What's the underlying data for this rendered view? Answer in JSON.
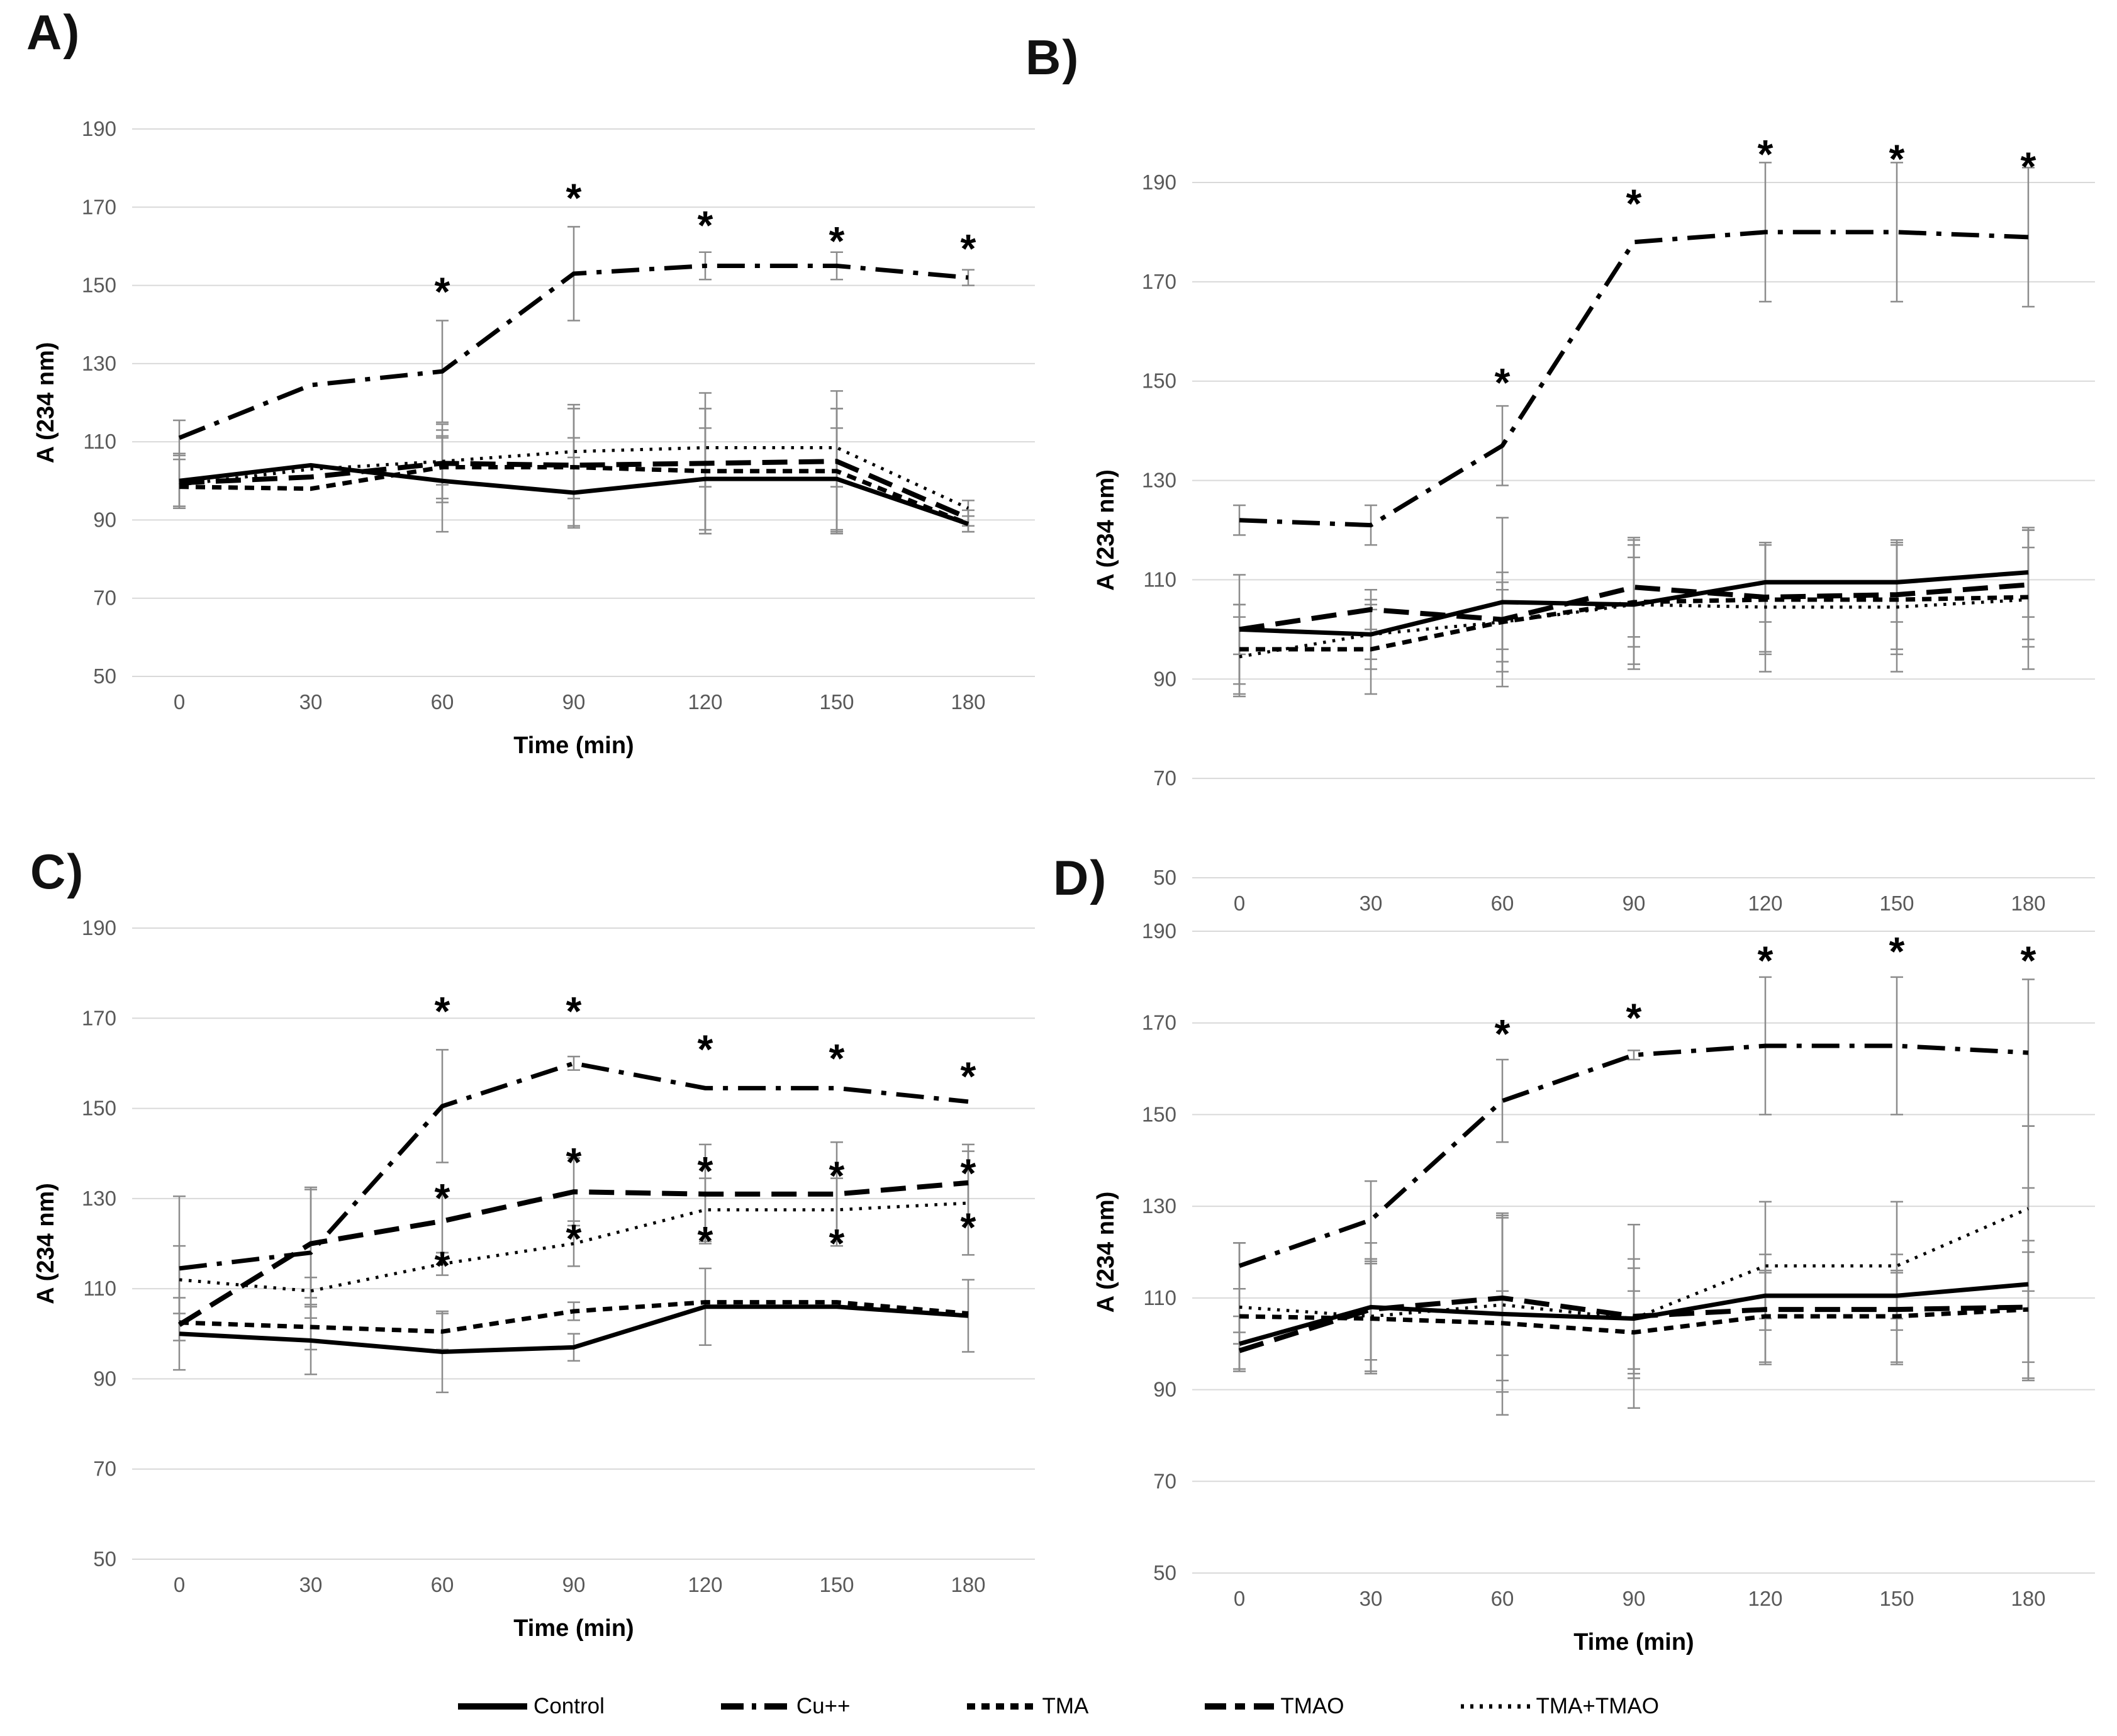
{
  "figure": {
    "y_axis_label": "A (234 nm)",
    "x_axis_label": "Time (min)",
    "signif_symbol": "*",
    "colors": {
      "line": "#000000",
      "grid": "#d9d9d9",
      "tick_text": "#595959",
      "error_bar": "#8c8c8c",
      "background": "#ffffff"
    }
  },
  "legend": {
    "items": [
      {
        "label": "Control",
        "style": "solid"
      },
      {
        "label": "Cu++",
        "style": "dashdot"
      },
      {
        "label": "TMA",
        "style": "dash"
      },
      {
        "label": "TMAO",
        "style": "longdash"
      },
      {
        "label": "TMA+TMAO",
        "style": "dotted"
      }
    ]
  },
  "chart_data": [
    {
      "type": "line",
      "panel_label": "A)",
      "x": [
        0,
        30,
        60,
        90,
        120,
        150,
        180
      ],
      "xlabel": "Time (min)",
      "ylabel": "A (234 nm)",
      "ylim": [
        50,
        190
      ],
      "y_ticks": [
        190,
        170,
        150,
        130,
        110,
        90,
        70,
        50
      ],
      "grid": true,
      "series": [
        {
          "name": "Control",
          "style": "solid",
          "values": [
            100,
            104,
            100,
            97,
            100.5,
            100.5,
            89
          ],
          "err": [
            7,
            0,
            13,
            9,
            13,
            13,
            2
          ]
        },
        {
          "name": "Cu++",
          "style": "dashdot",
          "values": [
            111,
            124.5,
            128,
            153,
            155,
            155,
            152
          ],
          "err": [
            4.5,
            0,
            13,
            12,
            3.5,
            3.5,
            2
          ]
        },
        {
          "name": "TMA",
          "style": "dash",
          "values": [
            98.5,
            98,
            103.5,
            103.5,
            102.5,
            102.5,
            89
          ],
          "err": [
            0,
            0,
            8,
            15,
            16,
            16,
            2
          ]
        },
        {
          "name": "TMAO",
          "style": "longdash",
          "values": [
            99.5,
            101,
            104.5,
            104,
            104.5,
            105,
            90.5
          ],
          "err": [
            6,
            0,
            10,
            7,
            18,
            18,
            2
          ]
        },
        {
          "name": "TMA+TMAO",
          "style": "dotted",
          "values": [
            99,
            103,
            105,
            107.5,
            108.5,
            108.5,
            93
          ],
          "err": [
            0,
            0,
            6,
            12,
            10,
            10,
            2
          ]
        }
      ],
      "asterisks": [
        [
          60,
          150
        ],
        [
          90,
          174
        ],
        [
          120,
          167
        ],
        [
          150,
          163
        ],
        [
          180,
          161
        ]
      ]
    },
    {
      "type": "line",
      "panel_label": "B)",
      "x": [
        0,
        30,
        60,
        90,
        120,
        150,
        180
      ],
      "xlabel": "Time (min)",
      "ylabel": "A (234 nm)",
      "ylim": [
        50,
        190
      ],
      "y_ticks": [
        190,
        170,
        150,
        130,
        110,
        90,
        70,
        50
      ],
      "grid": true,
      "series": [
        {
          "name": "Control",
          "style": "solid",
          "values": [
            100,
            99,
            105.5,
            105,
            109.5,
            109.5,
            111.5
          ],
          "err": [
            11,
            7,
            17,
            13,
            8,
            8,
            9
          ]
        },
        {
          "name": "Cu++",
          "style": "dashdot",
          "values": [
            122,
            121,
            137,
            178,
            180,
            180,
            179
          ],
          "err": [
            3,
            4,
            8,
            0,
            14,
            14,
            14
          ]
        },
        {
          "name": "TMA",
          "style": "dash",
          "values": [
            96,
            96,
            101.5,
            105.5,
            106,
            106,
            106.5
          ],
          "err": [
            9,
            9,
            10,
            9,
            11,
            11,
            10
          ]
        },
        {
          "name": "TMAO",
          "style": "longdash",
          "values": [
            100,
            104,
            102,
            108.5,
            106.5,
            107,
            109
          ],
          "err": [
            5,
            4,
            6,
            10,
            11,
            11,
            11
          ]
        },
        {
          "name": "TMA+TMAO",
          "style": "dotted",
          "values": [
            94.5,
            99,
            101.5,
            105,
            104.5,
            104.5,
            106
          ],
          "err": [
            8,
            5,
            8,
            12,
            13,
            13,
            14
          ]
        }
      ],
      "asterisks": [
        [
          60,
          151
        ],
        [
          90,
          187
        ],
        [
          120,
          197
        ],
        [
          150,
          196
        ],
        [
          180,
          194.5
        ]
      ]
    },
    {
      "type": "line",
      "panel_label": "C)",
      "x": [
        0,
        30,
        60,
        90,
        120,
        150,
        180
      ],
      "xlabel": "Time (min)",
      "ylabel": "A (234 nm)",
      "ylim": [
        50,
        190
      ],
      "y_ticks": [
        190,
        170,
        150,
        130,
        110,
        90,
        70,
        50
      ],
      "grid": true,
      "series": [
        {
          "name": "Control",
          "style": "solid",
          "values": [
            100,
            98.5,
            96,
            97,
            106,
            106,
            104
          ],
          "err": [
            8,
            7.5,
            9,
            3,
            8.5,
            0,
            8
          ]
        },
        {
          "name": "Cu++",
          "style": "dashdot",
          "values": [
            114.5,
            118,
            150.5,
            160,
            154.5,
            154.5,
            151.5
          ],
          "err": [
            16,
            14.5,
            12.5,
            1.5,
            0,
            0,
            0
          ]
        },
        {
          "name": "TMA",
          "style": "dash",
          "values": [
            102.5,
            101.5,
            100.5,
            105,
            107,
            107,
            104.5
          ],
          "err": [
            0,
            5,
            4,
            2,
            0,
            0,
            0
          ]
        },
        {
          "name": "TMAO",
          "style": "longdash",
          "values": [
            102,
            120,
            125,
            131.5,
            131,
            131,
            133.5
          ],
          "err": [
            0,
            12,
            7,
            7.5,
            11,
            11.5,
            8.5
          ]
        },
        {
          "name": "TMA+TMAO",
          "style": "dotted",
          "values": [
            112,
            109.5,
            115.5,
            120,
            127.5,
            127.5,
            129
          ],
          "err": [
            7.5,
            3,
            2.5,
            5,
            7,
            7,
            11.5
          ]
        }
      ],
      "asterisks": [
        [
          60,
          173
        ],
        [
          90,
          173
        ],
        [
          120,
          164.5
        ],
        [
          150,
          162.5
        ],
        [
          180,
          158.5
        ],
        [
          60,
          131.5
        ],
        [
          90,
          139.5
        ],
        [
          120,
          137.5
        ],
        [
          150,
          136.5
        ],
        [
          180,
          137
        ],
        [
          60,
          116.5
        ],
        [
          90,
          122.5
        ],
        [
          120,
          122
        ],
        [
          150,
          121.5
        ],
        [
          180,
          125
        ]
      ]
    },
    {
      "type": "line",
      "panel_label": "D)",
      "x": [
        0,
        30,
        60,
        90,
        120,
        150,
        180
      ],
      "xlabel": "Time (min)",
      "ylabel": "A (234 nm)",
      "ylim": [
        50,
        190
      ],
      "y_ticks": [
        190,
        170,
        150,
        130,
        110,
        90,
        70,
        50
      ],
      "grid": true,
      "series": [
        {
          "name": "Control",
          "style": "solid",
          "values": [
            100,
            108,
            106.5,
            105.5,
            110.5,
            110.5,
            113
          ],
          "err": [
            6,
            14,
            22,
            11,
            5,
            5,
            21
          ]
        },
        {
          "name": "Cu++",
          "style": "dashdot",
          "values": [
            117,
            127,
            153,
            163,
            165,
            165,
            163.5
          ],
          "err": [
            5,
            8.5,
            9,
            1,
            15,
            15,
            16
          ]
        },
        {
          "name": "TMA",
          "style": "dash",
          "values": [
            106,
            105.5,
            104.5,
            102.5,
            106,
            106,
            107.5
          ],
          "err": [
            6,
            12,
            7,
            9,
            10,
            10,
            15
          ]
        },
        {
          "name": "TMAO",
          "style": "longdash",
          "values": [
            98.5,
            107.5,
            110,
            106,
            107.5,
            107.5,
            108
          ],
          "err": [
            4,
            11,
            18,
            20,
            12,
            12,
            12
          ]
        },
        {
          "name": "TMA+TMAO",
          "style": "dotted",
          "values": [
            108,
            106,
            108.5,
            105.5,
            117,
            117,
            129.5
          ],
          "err": [
            14,
            12,
            19,
            13,
            14,
            14,
            18
          ]
        }
      ],
      "asterisks": [
        [
          60,
          169
        ],
        [
          90,
          172.5
        ],
        [
          120,
          185
        ],
        [
          150,
          187
        ],
        [
          180,
          185
        ]
      ]
    }
  ]
}
